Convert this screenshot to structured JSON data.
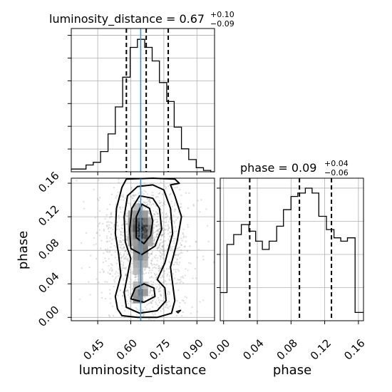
{
  "chart_data": {
    "type": "corner",
    "parameters": [
      "luminosity_distance",
      "phase"
    ],
    "truth": {
      "luminosity_distance": 0.645,
      "color": "#4a90c9"
    },
    "panels": [
      {
        "id": "hist-luminosity-distance",
        "type": "histogram",
        "parameter": "luminosity_distance",
        "title_name": "luminosity_distance",
        "title_value": "0.67",
        "title_plus": "+0.10",
        "title_minus": "−0.09",
        "xlim": [
          0.33,
          0.98
        ],
        "bin_edges": [
          0.33,
          0.363,
          0.397,
          0.43,
          0.463,
          0.497,
          0.53,
          0.563,
          0.597,
          0.63,
          0.663,
          0.697,
          0.73,
          0.763,
          0.797,
          0.83,
          0.863,
          0.897,
          0.93,
          0.963,
          0.98
        ],
        "counts": [
          2,
          2,
          5,
          7,
          15,
          28,
          48,
          70,
          92,
          98,
          92,
          82,
          66,
          52,
          33,
          17,
          9,
          3,
          1,
          0
        ],
        "quantiles": [
          0.58,
          0.67,
          0.77
        ],
        "grid": true
      },
      {
        "id": "hist-phase",
        "type": "histogram",
        "parameter": "phase",
        "title_name": "phase",
        "title_value": "0.09",
        "title_plus": "+0.04",
        "title_minus": "−0.06",
        "xlim": [
          -0.004,
          0.166
        ],
        "bin_edges": [
          -0.004,
          0.004,
          0.012,
          0.021,
          0.03,
          0.038,
          0.046,
          0.054,
          0.063,
          0.071,
          0.08,
          0.088,
          0.097,
          0.105,
          0.113,
          0.122,
          0.131,
          0.139,
          0.147,
          0.156,
          0.166
        ],
        "counts": [
          17,
          46,
          52,
          58,
          54,
          48,
          43,
          48,
          57,
          67,
          75,
          77,
          80,
          77,
          63,
          55,
          50,
          48,
          50,
          5
        ],
        "quantiles": [
          0.031,
          0.09,
          0.128
        ],
        "grid": true
      },
      {
        "id": "scatter-density",
        "type": "2d-density",
        "xparam": "luminosity_distance",
        "yparam": "phase",
        "xlim": [
          0.33,
          0.98
        ],
        "ylim": [
          -0.004,
          0.166
        ],
        "contour_levels": 4,
        "grid": true
      }
    ],
    "axes": {
      "x_bottom_left": {
        "label": "luminosity_distance",
        "ticks": [
          "0.45",
          "0.60",
          "0.75",
          "0.90"
        ],
        "tick_values": [
          0.45,
          0.6,
          0.75,
          0.9
        ]
      },
      "x_bottom_right": {
        "label": "phase",
        "ticks": [
          "0.00",
          "0.04",
          "0.08",
          "0.12",
          "0.16"
        ],
        "tick_values": [
          0.0,
          0.04,
          0.08,
          0.12,
          0.16
        ]
      },
      "y_left": {
        "label": "phase",
        "ticks": [
          "0.00",
          "0.04",
          "0.08",
          "0.12",
          "0.16"
        ],
        "tick_values": [
          0.0,
          0.04,
          0.08,
          0.12,
          0.16
        ]
      }
    }
  }
}
